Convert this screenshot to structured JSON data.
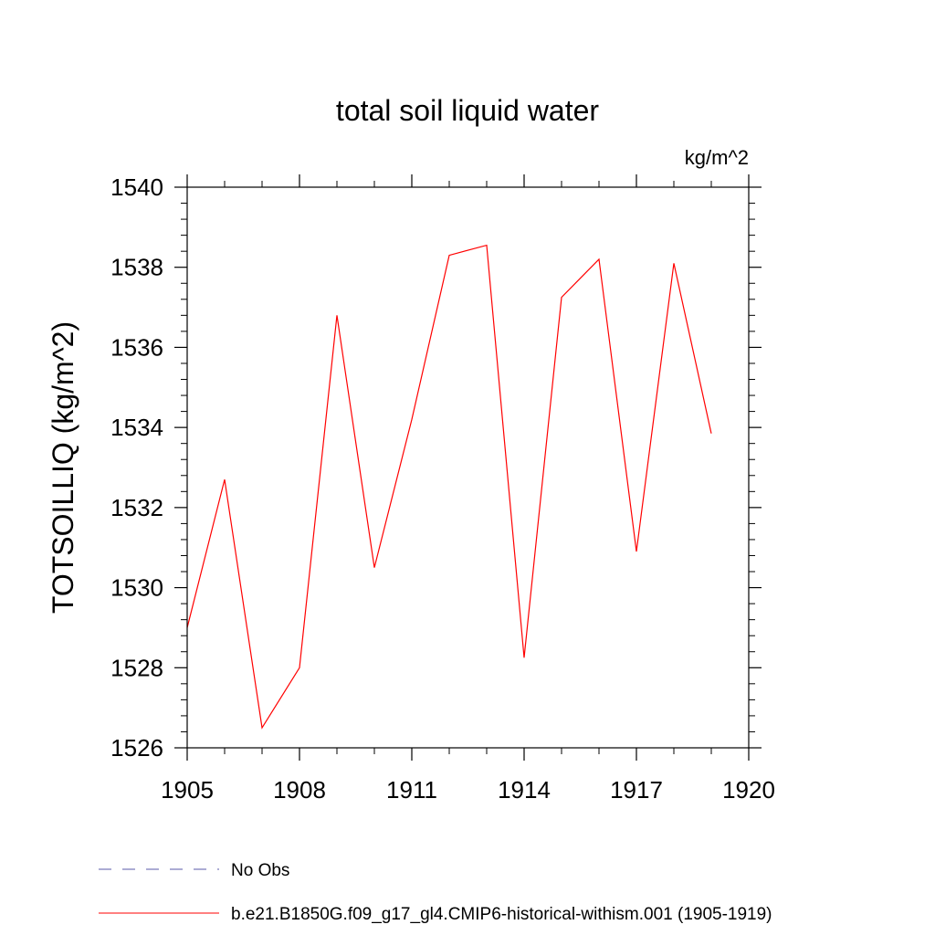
{
  "chart_data": {
    "type": "line",
    "title": "total soil liquid water",
    "units_label": "kg/m^2",
    "ylabel": "TOTSOILLIQ  (kg/m^2)",
    "xlabel": "",
    "xlim": [
      1905,
      1920
    ],
    "ylim": [
      1526,
      1540
    ],
    "x_ticks": [
      1905,
      1908,
      1911,
      1914,
      1917,
      1920
    ],
    "y_ticks": [
      1526,
      1528,
      1530,
      1532,
      1534,
      1536,
      1538,
      1540
    ],
    "grid": false,
    "legend_position": "bottom-left",
    "series": [
      {
        "name": "b.e21.B1850G.f09_g17_gl4.CMIP6-historical-withism.001 (1905-1919)",
        "color": "#ff0000",
        "line_style": "solid",
        "x": [
          1905,
          1906,
          1907,
          1908,
          1909,
          1910,
          1911,
          1912,
          1913,
          1914,
          1915,
          1916,
          1917,
          1918,
          1919
        ],
        "y": [
          1529.0,
          1532.7,
          1526.5,
          1528.0,
          1536.8,
          1530.5,
          1534.2,
          1538.3,
          1538.55,
          1528.25,
          1537.25,
          1538.2,
          1530.9,
          1538.1,
          1533.85
        ]
      }
    ],
    "legend": [
      {
        "label": "No Obs",
        "color": "#5a5aa8",
        "line_style": "dashed"
      },
      {
        "label": "b.e21.B1850G.f09_g17_gl4.CMIP6-historical-withism.001 (1905-1919)",
        "color": "#ff0000",
        "line_style": "solid"
      }
    ]
  }
}
